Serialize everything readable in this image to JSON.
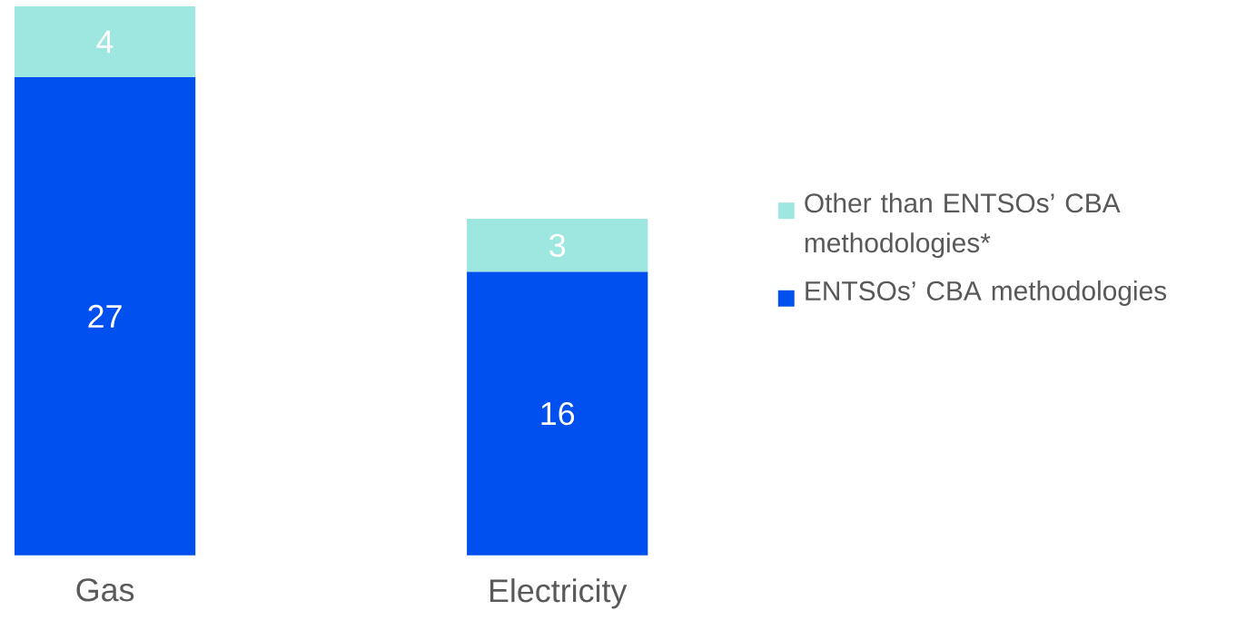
{
  "chart_data": {
    "type": "bar",
    "stacked": true,
    "categories": [
      "Gas",
      "Electricity"
    ],
    "series": [
      {
        "name": "ENTSOs’ CBA methodologies",
        "color": "#0050ef",
        "values": [
          27,
          16
        ]
      },
      {
        "name": "Other than ENTSOs’ CBA methodologies*",
        "color": "#9ee6e0",
        "values": [
          4,
          3
        ]
      }
    ],
    "data_labels": true,
    "legend": "right"
  }
}
